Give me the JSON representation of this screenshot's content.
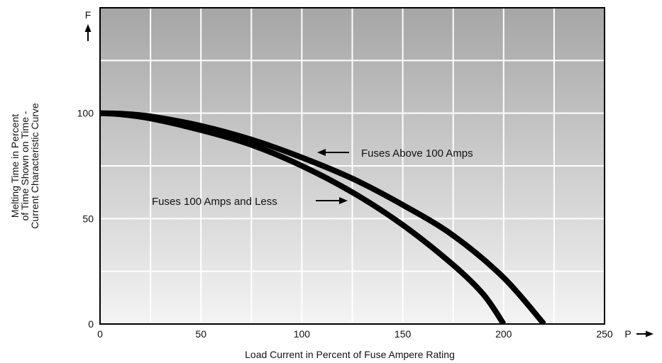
{
  "chart_data": {
    "type": "line",
    "title": "",
    "xlabel": "Load Current in Percent of Fuse Ampere Rating",
    "ylabel_lines": [
      "Melting Time in Percent",
      "of Time Shown on Time -",
      "Current Characteristic Curve"
    ],
    "x_axis_letter": "P",
    "y_axis_letter": "F",
    "xlim": [
      0,
      250
    ],
    "ylim": [
      0,
      150
    ],
    "x_ticks": [
      0,
      50,
      100,
      150,
      200,
      250
    ],
    "y_ticks": [
      0,
      50,
      100
    ],
    "grid": true,
    "series": [
      {
        "name": "Fuses Above 100 Amps",
        "x": [
          0,
          10,
          25,
          50,
          75,
          100,
          125,
          150,
          175,
          200,
          220
        ],
        "y": [
          100,
          99.8,
          98.5,
          94,
          87.5,
          79,
          69,
          56.5,
          42,
          22,
          0
        ]
      },
      {
        "name": "Fuses 100 Amps and Less",
        "x": [
          0,
          10,
          25,
          50,
          75,
          100,
          125,
          150,
          175,
          190,
          200
        ],
        "y": [
          100,
          99.5,
          97.5,
          92,
          85,
          75,
          62.5,
          47,
          28,
          14,
          0
        ]
      }
    ],
    "annotations": [
      {
        "text": "Fuses Above 100 Amps",
        "arrow": "left",
        "series": 0
      },
      {
        "text": "Fuses 100 Amps and Less",
        "arrow": "right",
        "series": 1
      }
    ],
    "colors": {
      "curve": "#000000",
      "grid": "#ffffff",
      "plot_top": "#a6a6a6",
      "plot_bottom": "#f4f4f4"
    }
  }
}
